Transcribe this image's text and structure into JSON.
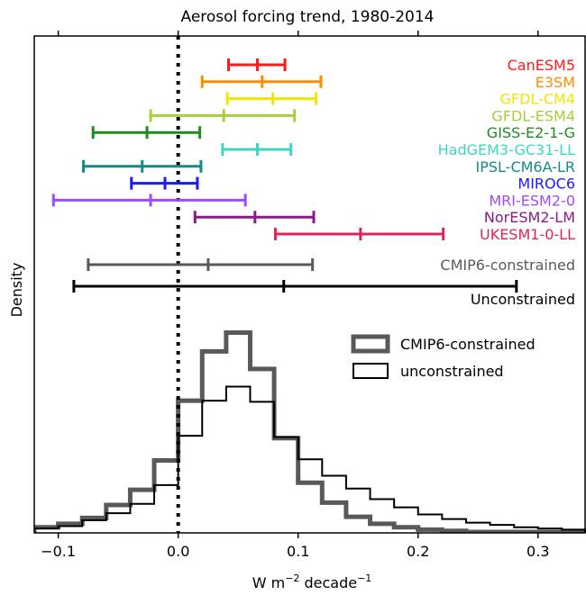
{
  "chart_data": {
    "type": "histogram_with_errorbars",
    "title": "Aerosol forcing trend, 1980-2014",
    "xlabel": "W m",
    "xlabel_sup1": "−2",
    "xlabel_mid": " decade",
    "xlabel_sup2": "−1",
    "ylabel": "Density",
    "xlim": [
      -0.12,
      0.34
    ],
    "xticks": [
      {
        "value": -0.1,
        "label": "−0.1"
      },
      {
        "value": 0.0,
        "label": "0.0"
      },
      {
        "value": 0.1,
        "label": "0.1"
      },
      {
        "value": 0.2,
        "label": "0.2"
      },
      {
        "value": 0.3,
        "label": "0.3"
      }
    ],
    "zero_line": 0.0,
    "models": [
      {
        "name": "CanESM5",
        "low": 0.042,
        "mid": 0.066,
        "high": 0.089,
        "color": "#ff1a1a"
      },
      {
        "name": "E3SM",
        "low": 0.02,
        "mid": 0.07,
        "high": 0.119,
        "color": "#ff8c00"
      },
      {
        "name": "GFDL-CM4",
        "low": 0.041,
        "mid": 0.079,
        "high": 0.115,
        "color": "#f2e600"
      },
      {
        "name": "GFDL-ESM4",
        "low": -0.023,
        "mid": 0.038,
        "high": 0.097,
        "color": "#a6cf3c"
      },
      {
        "name": "GISS-E2-1-G",
        "low": -0.071,
        "mid": -0.026,
        "high": 0.018,
        "color": "#1f8a1f"
      },
      {
        "name": "HadGEM3-GC31-LL",
        "low": 0.037,
        "mid": 0.066,
        "high": 0.094,
        "color": "#3dd6c6"
      },
      {
        "name": "IPSL-CM6A-LR",
        "low": -0.079,
        "mid": -0.03,
        "high": 0.019,
        "color": "#168a8a"
      },
      {
        "name": "MIROC6",
        "low": -0.039,
        "mid": -0.011,
        "high": 0.016,
        "color": "#1a1aff"
      },
      {
        "name": "MRI-ESM2-0",
        "low": -0.104,
        "mid": -0.023,
        "high": 0.056,
        "color": "#9b4dff"
      },
      {
        "name": "NorESM2-LM",
        "low": 0.014,
        "mid": 0.064,
        "high": 0.113,
        "color": "#8a1a8a"
      },
      {
        "name": "UKESM1-0-LL",
        "low": 0.081,
        "mid": 0.152,
        "high": 0.221,
        "color": "#e0245a"
      }
    ],
    "ranges": [
      {
        "name": "CMIP6-constrained",
        "low": -0.075,
        "mid": 0.025,
        "high": 0.112,
        "color": "#595959"
      },
      {
        "name": "Unconstrained",
        "low": -0.087,
        "mid": 0.088,
        "high": 0.282,
        "color": "#000000"
      }
    ],
    "bin_edges": [
      -0.14,
      -0.12,
      -0.1,
      -0.08,
      -0.06,
      -0.04,
      -0.02,
      0.0,
      0.02,
      0.04,
      0.06,
      0.08,
      0.1,
      0.12,
      0.14,
      0.16,
      0.18,
      0.2,
      0.22,
      0.24,
      0.26,
      0.28,
      0.3,
      0.32,
      0.34
    ],
    "histograms": [
      {
        "name": "CMIP6-constrained",
        "color": "#595959",
        "stroke_width": 5,
        "values": [
          0.0,
          0.4,
          0.7,
          1.2,
          2.3,
          3.6,
          6.1,
          11.2,
          15.4,
          17.0,
          13.9,
          8.0,
          4.2,
          2.5,
          1.3,
          0.7,
          0.4,
          0.2,
          0.1,
          0.0,
          0.0,
          0.0,
          0.0,
          0.0
        ]
      },
      {
        "name": "unconstrained",
        "color": "#000000",
        "stroke_width": 2,
        "values": [
          0.0,
          0.3,
          0.5,
          1.0,
          1.6,
          2.4,
          4.0,
          8.2,
          11.2,
          12.4,
          11.1,
          8.1,
          6.2,
          4.8,
          3.7,
          2.8,
          2.1,
          1.5,
          1.1,
          0.8,
          0.6,
          0.4,
          0.3,
          0.2
        ]
      }
    ],
    "hist_ylim": [
      0,
      18.5
    ],
    "legend": {
      "placement": "center-right",
      "entries": [
        "CMIP6-constrained",
        "unconstrained"
      ]
    }
  }
}
